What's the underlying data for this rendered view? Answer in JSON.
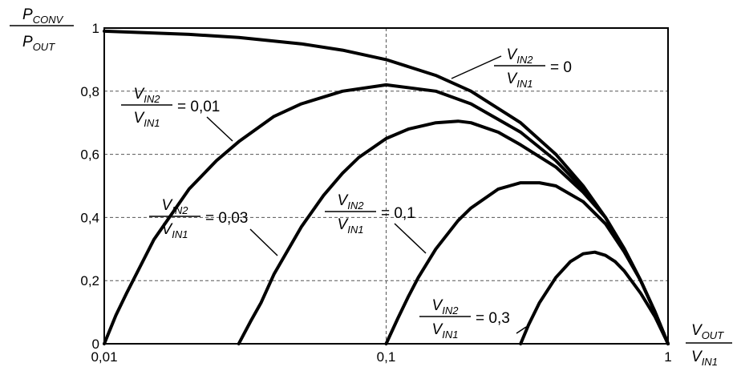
{
  "chart_data": {
    "type": "line",
    "x_scale": "log",
    "xlim": [
      0.01,
      1
    ],
    "ylim": [
      0,
      1
    ],
    "grid": true,
    "x_ticks": [
      {
        "value": 0.01,
        "label": "0,01"
      },
      {
        "value": 0.1,
        "label": "0,1"
      },
      {
        "value": 1,
        "label": "1"
      }
    ],
    "y_ticks": [
      {
        "value": 0,
        "label": "0"
      },
      {
        "value": 0.2,
        "label": "0,2"
      },
      {
        "value": 0.4,
        "label": "0,4"
      },
      {
        "value": 0.6,
        "label": "0,6"
      },
      {
        "value": 0.8,
        "label": "0,8"
      },
      {
        "value": 1,
        "label": "1"
      }
    ],
    "ylabel": {
      "num": "P",
      "num_sub": "CONV",
      "den": "P",
      "den_sub": "OUT"
    },
    "xlabel": {
      "num": "V",
      "num_sub": "OUT",
      "den": "V",
      "den_sub": "IN1"
    },
    "series": [
      {
        "ratio_label": "0",
        "x": [
          0.01,
          0.02,
          0.03,
          0.05,
          0.07,
          0.1,
          0.15,
          0.2,
          0.3,
          0.4,
          0.5,
          0.6,
          0.7,
          0.8,
          0.9,
          1.0
        ],
        "y": [
          0.99,
          0.98,
          0.97,
          0.95,
          0.93,
          0.9,
          0.85,
          0.8,
          0.7,
          0.6,
          0.5,
          0.4,
          0.3,
          0.2,
          0.1,
          0.0
        ]
      },
      {
        "ratio_label": "0,01",
        "x": [
          0.01,
          0.011,
          0.012,
          0.015,
          0.02,
          0.025,
          0.03,
          0.04,
          0.05,
          0.07,
          0.1,
          0.15,
          0.2,
          0.3,
          0.4,
          0.5,
          0.6,
          0.7,
          0.8,
          0.9,
          1.0
        ],
        "y": [
          0.0,
          0.09,
          0.16,
          0.33,
          0.49,
          0.58,
          0.64,
          0.72,
          0.76,
          0.8,
          0.82,
          0.8,
          0.76,
          0.67,
          0.58,
          0.49,
          0.4,
          0.3,
          0.2,
          0.1,
          0.0
        ]
      },
      {
        "ratio_label": "0,03",
        "x": [
          0.03,
          0.033,
          0.036,
          0.04,
          0.05,
          0.06,
          0.07,
          0.08,
          0.1,
          0.12,
          0.15,
          0.18,
          0.2,
          0.25,
          0.3,
          0.4,
          0.5,
          0.6,
          0.7,
          0.8,
          0.9,
          1.0
        ],
        "y": [
          0.0,
          0.07,
          0.13,
          0.22,
          0.37,
          0.47,
          0.54,
          0.59,
          0.65,
          0.68,
          0.7,
          0.705,
          0.7,
          0.67,
          0.63,
          0.56,
          0.48,
          0.4,
          0.3,
          0.2,
          0.1,
          0.0
        ]
      },
      {
        "ratio_label": "0,1",
        "x": [
          0.1,
          0.11,
          0.12,
          0.13,
          0.15,
          0.18,
          0.2,
          0.25,
          0.3,
          0.35,
          0.4,
          0.5,
          0.6,
          0.7,
          0.8,
          0.9,
          1.0
        ],
        "y": [
          0.0,
          0.08,
          0.15,
          0.21,
          0.3,
          0.39,
          0.43,
          0.49,
          0.51,
          0.51,
          0.5,
          0.45,
          0.38,
          0.29,
          0.2,
          0.1,
          0.0
        ]
      },
      {
        "ratio_label": "0,3",
        "x": [
          0.3,
          0.32,
          0.35,
          0.4,
          0.45,
          0.5,
          0.55,
          0.6,
          0.65,
          0.7,
          0.8,
          0.9,
          1.0
        ],
        "y": [
          0.0,
          0.06,
          0.13,
          0.21,
          0.26,
          0.285,
          0.29,
          0.28,
          0.26,
          0.23,
          0.16,
          0.085,
          0.0
        ]
      }
    ],
    "annotations": [
      {
        "series": 0,
        "num": "V",
        "num_sub": "IN2",
        "den": "V",
        "den_sub": "IN1",
        "value": "0"
      },
      {
        "series": 1,
        "num": "V",
        "num_sub": "IN2",
        "den": "V",
        "den_sub": "IN1",
        "value": "0,01"
      },
      {
        "series": 2,
        "num": "V",
        "num_sub": "IN2",
        "den": "V",
        "den_sub": "IN1",
        "value": "0,03"
      },
      {
        "series": 3,
        "num": "V",
        "num_sub": "IN2",
        "den": "V",
        "den_sub": "IN1",
        "value": "0,1"
      },
      {
        "series": 4,
        "num": "V",
        "num_sub": "IN2",
        "den": "V",
        "den_sub": "IN1",
        "value": "0,3"
      }
    ]
  }
}
